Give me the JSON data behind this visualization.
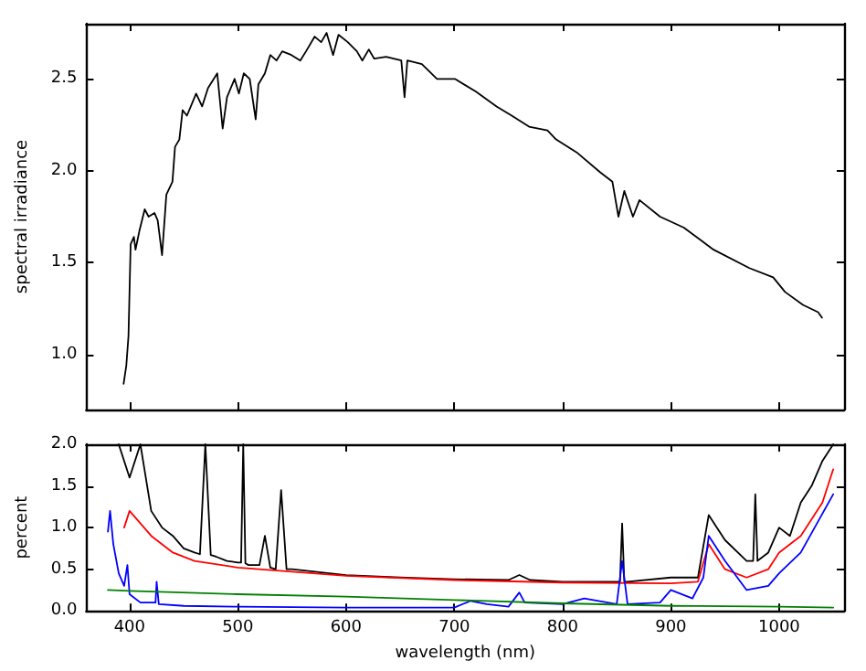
{
  "chart_data": [
    {
      "type": "line",
      "ylabel": "spectral irradiance",
      "xlim": [
        360,
        1060
      ],
      "ylim": [
        0.7,
        2.8
      ],
      "xticks": [
        400,
        500,
        600,
        700,
        800,
        900,
        1000
      ],
      "yticks": [
        {
          "value": 1.0,
          "label": "1.0"
        },
        {
          "value": 1.5,
          "label": "1.5"
        },
        {
          "value": 2.0,
          "label": "2.0"
        },
        {
          "value": 2.5,
          "label": "2.5"
        }
      ],
      "tick_labels": "y",
      "grid": false,
      "marker": "none",
      "series": [
        {
          "color": "#000000",
          "x": [
            394.5,
            397,
            399,
            401,
            404,
            405.5,
            409,
            414,
            417.6,
            423,
            426,
            430,
            434,
            439.6,
            442,
            446,
            449,
            453,
            461.5,
            467,
            472.5,
            481,
            486,
            490,
            497,
            501,
            505.5,
            511,
            516.5,
            519,
            525,
            530,
            535.7,
            541,
            549.5,
            557.7,
            563,
            571,
            577,
            582,
            588,
            593,
            601.6,
            610,
            615,
            621,
            626,
            637,
            651,
            654,
            656.6,
            670,
            684,
            700.5,
            720,
            739,
            753,
            769,
            786,
            794,
            813,
            835,
            846,
            851.6,
            857,
            865,
            871,
            890,
            912,
            939.5,
            972.5,
            994.5,
            1005.5,
            1022,
            1036,
            1039.6
          ],
          "values": [
            0.84,
            0.94,
            1.1,
            1.6,
            1.64,
            1.57,
            1.67,
            1.79,
            1.75,
            1.77,
            1.73,
            1.54,
            1.87,
            1.94,
            2.13,
            2.17,
            2.33,
            2.3,
            2.42,
            2.35,
            2.45,
            2.53,
            2.23,
            2.4,
            2.5,
            2.42,
            2.53,
            2.5,
            2.28,
            2.47,
            2.53,
            2.63,
            2.6,
            2.65,
            2.63,
            2.6,
            2.65,
            2.73,
            2.7,
            2.75,
            2.63,
            2.74,
            2.7,
            2.65,
            2.6,
            2.66,
            2.61,
            2.62,
            2.6,
            2.4,
            2.6,
            2.58,
            2.5,
            2.5,
            2.43,
            2.35,
            2.3,
            2.24,
            2.22,
            2.17,
            2.1,
            1.99,
            1.94,
            1.75,
            1.89,
            1.75,
            1.84,
            1.75,
            1.69,
            1.57,
            1.47,
            1.42,
            1.34,
            1.27,
            1.23,
            1.2
          ]
        }
      ]
    },
    {
      "type": "line",
      "xlabel": "wavelength (nm)",
      "ylabel": "percent",
      "xlim": [
        360,
        1060
      ],
      "ylim": [
        0,
        2
      ],
      "xticks": [
        400,
        500,
        600,
        700,
        800,
        900,
        1000
      ],
      "yticks": [
        {
          "value": 0,
          "label": "0.0"
        },
        {
          "value": 0.5,
          "label": "0.5"
        },
        {
          "value": 1.0,
          "label": "1.0"
        },
        {
          "value": 1.5,
          "label": "1.5"
        },
        {
          "value": 2.0,
          "label": "2.0"
        }
      ],
      "grid": false,
      "marker": "none",
      "series": [
        {
          "color": "#000000",
          "x": [
            390,
            400,
            410,
            420,
            430,
            440,
            450,
            460,
            465,
            470,
            475,
            480,
            490,
            500,
            503,
            505,
            507,
            510,
            520,
            525,
            530,
            535,
            540,
            545,
            550,
            600,
            650,
            700,
            750,
            760,
            770,
            800,
            850,
            853,
            855,
            857,
            860,
            900,
            925,
            935,
            950,
            970,
            976,
            978,
            980,
            990,
            1000,
            1010,
            1020,
            1030,
            1040,
            1050
          ],
          "values": [
            2.0,
            1.6,
            2.0,
            1.2,
            1.0,
            0.9,
            0.75,
            0.7,
            0.68,
            2.0,
            0.67,
            0.65,
            0.6,
            0.58,
            0.58,
            2.0,
            0.57,
            0.55,
            0.55,
            0.9,
            0.52,
            0.5,
            1.45,
            0.5,
            0.5,
            0.43,
            0.4,
            0.38,
            0.37,
            0.43,
            0.37,
            0.35,
            0.35,
            0.35,
            1.05,
            0.35,
            0.35,
            0.4,
            0.4,
            1.15,
            0.85,
            0.6,
            0.6,
            1.4,
            0.6,
            0.7,
            1.0,
            0.9,
            1.3,
            1.5,
            1.8,
            2.0
          ]
        },
        {
          "color": "#ff0000",
          "x": [
            395,
            400,
            420,
            440,
            460,
            500,
            550,
            600,
            700,
            800,
            900,
            925,
            935,
            950,
            970,
            990,
            1000,
            1020,
            1040,
            1050
          ],
          "values": [
            1.0,
            1.2,
            0.9,
            0.7,
            0.6,
            0.52,
            0.47,
            0.42,
            0.37,
            0.34,
            0.33,
            0.35,
            0.8,
            0.5,
            0.4,
            0.5,
            0.7,
            0.9,
            1.3,
            1.7
          ]
        },
        {
          "color": "#0000ff",
          "x": [
            380,
            382,
            385,
            390,
            395,
            398,
            400,
            410,
            424,
            425,
            427,
            450,
            500,
            600,
            700,
            715,
            730,
            750,
            760,
            765,
            800,
            820,
            850,
            855,
            860,
            890,
            900,
            920,
            930,
            935,
            950,
            970,
            990,
            1000,
            1020,
            1050
          ],
          "values": [
            0.95,
            1.2,
            0.8,
            0.45,
            0.3,
            0.55,
            0.2,
            0.1,
            0.1,
            0.35,
            0.08,
            0.06,
            0.05,
            0.04,
            0.04,
            0.12,
            0.08,
            0.05,
            0.22,
            0.1,
            0.08,
            0.15,
            0.08,
            0.6,
            0.08,
            0.1,
            0.25,
            0.15,
            0.4,
            0.9,
            0.6,
            0.25,
            0.3,
            0.45,
            0.7,
            1.4
          ]
        },
        {
          "color": "#008000",
          "x": [
            380,
            400,
            500,
            600,
            700,
            800,
            900,
            1000,
            1050
          ],
          "values": [
            0.25,
            0.24,
            0.2,
            0.17,
            0.13,
            0.09,
            0.06,
            0.05,
            0.04
          ]
        }
      ]
    }
  ]
}
